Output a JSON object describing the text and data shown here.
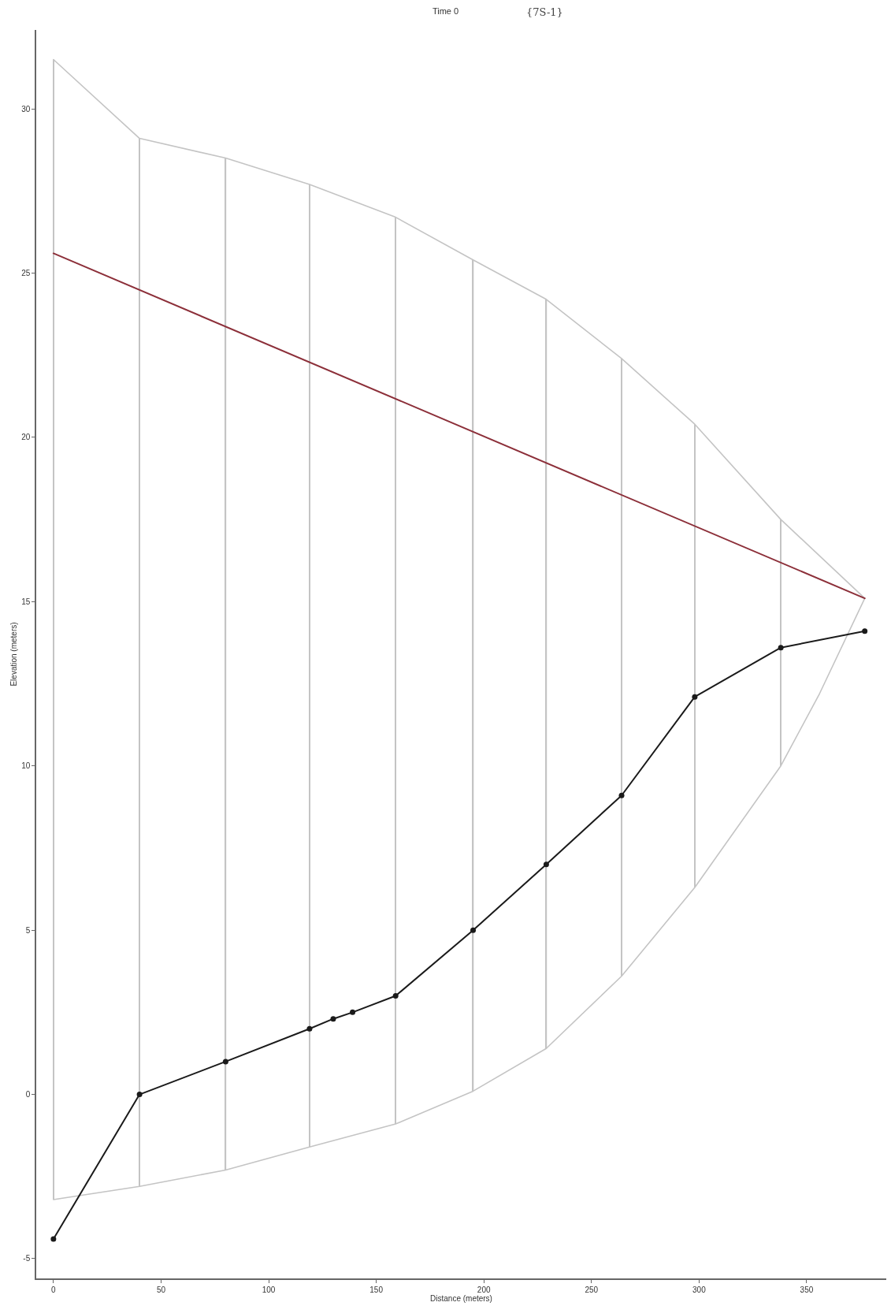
{
  "chart_data": {
    "type": "line",
    "title": "Time 0",
    "xlabel": "Distance (meters)",
    "ylabel": "Elevation (meters)",
    "annotations": [
      "{7S-1}"
    ],
    "xlim": [
      -8,
      387
    ],
    "ylim": [
      -5.6,
      32.4
    ],
    "xticks": [
      0,
      50,
      100,
      150,
      200,
      250,
      300,
      350
    ],
    "yticks": [
      -5,
      0,
      5,
      10,
      15,
      20,
      25,
      30
    ],
    "grid": false,
    "marker": "none",
    "line_style": "solid",
    "series": [
      {
        "type": "bar",
        "color": "#c4c4c4",
        "x": [
          0,
          40,
          80,
          119,
          159,
          195,
          229,
          264,
          298,
          338
        ],
        "base": [
          -3.2,
          -2.8,
          -2.3,
          -1.6,
          -0.9,
          0.1,
          1.4,
          3.6,
          6.3,
          10.0
        ],
        "values": [
          34.7,
          31.9,
          30.8,
          29.3,
          27.6,
          25.3,
          22.8,
          18.8,
          14.1,
          7.5
        ]
      },
      {
        "color": "#c4c4c4",
        "x": [
          0,
          40,
          80,
          119,
          159,
          195,
          229,
          264,
          298,
          338,
          377
        ],
        "values": [
          31.5,
          29.1,
          28.5,
          27.7,
          26.7,
          25.4,
          24.2,
          22.4,
          20.4,
          17.5,
          15.1
        ]
      },
      {
        "color": "#c4c4c4",
        "x": [
          0,
          40,
          80,
          119,
          159,
          195,
          229,
          264,
          298,
          338,
          356,
          377
        ],
        "values": [
          -3.2,
          -2.8,
          -2.3,
          -1.6,
          -0.9,
          0.1,
          1.4,
          3.6,
          6.3,
          10.0,
          12.2,
          15.1
        ]
      },
      {
        "color": "#8c2f39",
        "x": [
          0,
          377
        ],
        "values": [
          25.6,
          15.1
        ]
      },
      {
        "color": "#1a1a1a",
        "marker": "circle",
        "x": [
          0,
          40,
          80,
          119,
          130,
          139,
          159,
          195,
          229,
          264,
          298,
          338,
          377
        ],
        "values": [
          -4.4,
          0,
          1.0,
          2.0,
          2.3,
          2.5,
          3.0,
          5.0,
          7.0,
          9.1,
          12.1,
          13.6,
          14.1
        ]
      }
    ]
  }
}
